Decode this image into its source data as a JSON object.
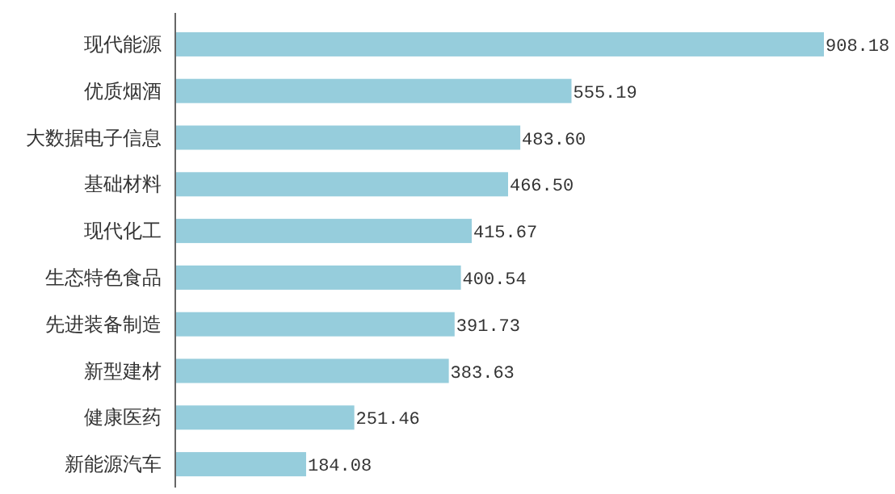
{
  "chart_data": {
    "type": "bar",
    "orientation": "horizontal",
    "categories": [
      "现代能源",
      "优质烟酒",
      "大数据电子信息",
      "基础材料",
      "现代化工",
      "生态特色食品",
      "先进装备制造",
      "新型建材",
      "健康医药",
      "新能源汽车"
    ],
    "values": [
      908.18,
      555.19,
      483.6,
      466.5,
      415.67,
      400.54,
      391.73,
      383.63,
      251.46,
      184.08
    ],
    "value_labels": [
      "908.18",
      "555.19",
      "483.60",
      "466.50",
      "415.67",
      "400.54",
      "391.73",
      "383.63",
      "251.46",
      "184.08"
    ],
    "color": "#96cddc"
  }
}
